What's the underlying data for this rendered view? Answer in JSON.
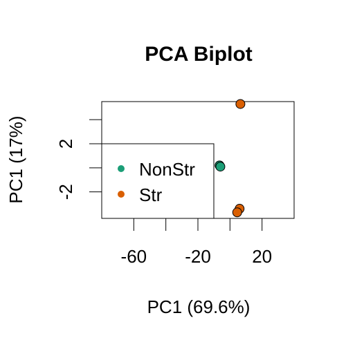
{
  "chart_data": {
    "type": "scatter",
    "title": "PCA Biplot",
    "xlabel": "PC1 (69.6%)",
    "ylabel": "PC1 (17%)",
    "xlim": [
      -80,
      40
    ],
    "ylim": [
      -4.2,
      5.5
    ],
    "x_ticks": [
      -60,
      -40,
      -20,
      0,
      20
    ],
    "x_tick_labels": [
      "-60",
      "",
      "-20",
      "",
      "20"
    ],
    "y_ticks": [
      -2,
      0,
      2,
      4
    ],
    "y_tick_labels": [
      "-2",
      "",
      "2",
      ""
    ],
    "grid": false,
    "legend_position": "left",
    "series": [
      {
        "name": "NonStr",
        "color": "#1b9e77",
        "points": [
          {
            "x": -6.5,
            "y": 0.2
          },
          {
            "x": -6.0,
            "y": 0.1
          }
        ]
      },
      {
        "name": "Str",
        "color": "#d95f02",
        "points": [
          {
            "x": 6.5,
            "y": 5.3
          },
          {
            "x": 6.0,
            "y": -3.4
          },
          {
            "x": 4.5,
            "y": -3.7
          }
        ]
      }
    ]
  }
}
